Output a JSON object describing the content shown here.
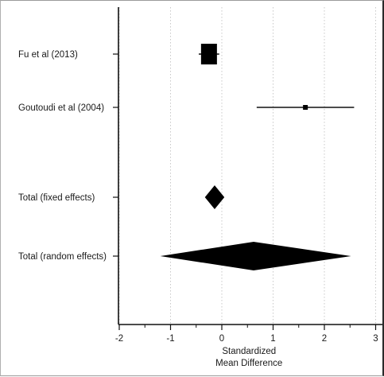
{
  "chart_data": {
    "type": "forest",
    "title": "",
    "xlabel_lines": [
      "Standardized",
      "Mean Difference"
    ],
    "ylabel": "",
    "xlim": [
      -2.3,
      3.2
    ],
    "xticks": [
      -2,
      -1,
      0,
      1,
      2,
      3
    ],
    "xtick_labels": [
      "-2",
      "-1",
      "0",
      "1",
      "2",
      "3"
    ],
    "grid": "vertical-dotted",
    "rows": [
      {
        "label": "Fu et al (2013)",
        "kind": "study",
        "estimate": -0.25,
        "ci_low": -0.45,
        "ci_high": -0.05,
        "weight": "large"
      },
      {
        "label": "Goutoudi et al (2004)",
        "kind": "study",
        "estimate": 1.63,
        "ci_low": 0.68,
        "ci_high": 2.58,
        "weight": "small"
      },
      {
        "label": "Total (fixed effects)",
        "kind": "pooled",
        "estimate": -0.14,
        "ci_low": -0.33,
        "ci_high": 0.05
      },
      {
        "label": "Total (random effects)",
        "kind": "pooled",
        "estimate": 0.62,
        "ci_low": -1.2,
        "ci_high": 2.52
      }
    ]
  }
}
